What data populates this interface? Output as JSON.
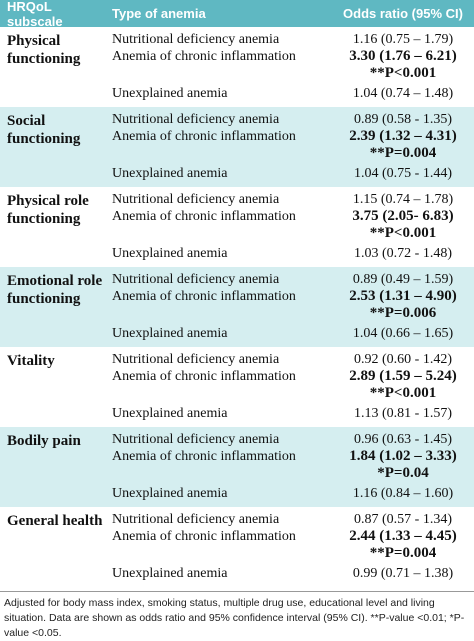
{
  "table": {
    "header": [
      "HRQoL subscale",
      "Type of anemia",
      "Odds ratio (95% CI)"
    ],
    "groups": [
      {
        "subscale": "Physical functioning",
        "rows": [
          {
            "type": "Nutritional deficiency anemia",
            "or": "1.16 (0.75 – 1.79)"
          },
          {
            "type": "Anemia of chronic inflammation",
            "or": "3.30 (1.76 – 6.21)",
            "p": "**P<0.001"
          },
          {
            "type": "Unexplained anemia",
            "or": "1.04 (0.74 – 1.48)"
          }
        ]
      },
      {
        "subscale": "Social functioning",
        "rows": [
          {
            "type": "Nutritional deficiency anemia",
            "or": "0.89 (0.58 - 1.35)"
          },
          {
            "type": "Anemia of chronic inflammation",
            "or": "2.39 (1.32 – 4.31)",
            "p": "**P=0.004"
          },
          {
            "type": "Unexplained anemia",
            "or": "1.04 (0.75 - 1.44)"
          }
        ]
      },
      {
        "subscale": "Physical role functioning",
        "rows": [
          {
            "type": "Nutritional deficiency anemia",
            "or": "1.15 (0.74 – 1.78)"
          },
          {
            "type": "Anemia of chronic inflammation",
            "or": "3.75 (2.05- 6.83)",
            "p": "**P<0.001"
          },
          {
            "type": "Unexplained anemia",
            "or": "1.03 (0.72 - 1.48)"
          }
        ]
      },
      {
        "subscale": "Emotional role functioning",
        "rows": [
          {
            "type": "Nutritional deficiency anemia",
            "or": "0.89 (0.49 – 1.59)"
          },
          {
            "type": "Anemia of chronic inflammation",
            "or": "2.53 (1.31 – 4.90)",
            "p": "**P=0.006"
          },
          {
            "type": "Unexplained anemia",
            "or": "1.04 (0.66 – 1.65)"
          }
        ]
      },
      {
        "subscale": "Vitality",
        "rows": [
          {
            "type": "Nutritional deficiency anemia",
            "or": "0.92 (0.60 - 1.42)"
          },
          {
            "type": "Anemia of chronic inflammation",
            "or": "2.89 (1.59 – 5.24)",
            "p": "**P<0.001"
          },
          {
            "type": "Unexplained anemia",
            "or": "1.13 (0.81 - 1.57)"
          }
        ]
      },
      {
        "subscale": "Bodily pain",
        "rows": [
          {
            "type": "Nutritional deficiency anemia",
            "or": "0.96 (0.63 - 1.45)"
          },
          {
            "type": "Anemia of chronic inflammation",
            "or": "1.84 (1.02 – 3.33)",
            "p": "*P=0.04"
          },
          {
            "type": "Unexplained anemia",
            "or": "1.16 (0.84 – 1.60)"
          }
        ]
      },
      {
        "subscale": "General health",
        "rows": [
          {
            "type": "Nutritional deficiency anemia",
            "or": "0.87 (0.57 - 1.34)"
          },
          {
            "type": "Anemia of chronic inflammation",
            "or": "2.44 (1.33 – 4.45)",
            "p": "**P=0.004"
          },
          {
            "type": "Unexplained anemia",
            "or": "0.99 (0.71 – 1.38)"
          }
        ]
      }
    ],
    "footnote": "Adjusted for body mass index, smoking status, multiple drug use, educational level and living situation. Data are shown as odds ratio and 95% confidence interval (95% CI). **P-value <0.01; *P-value <0.05."
  }
}
